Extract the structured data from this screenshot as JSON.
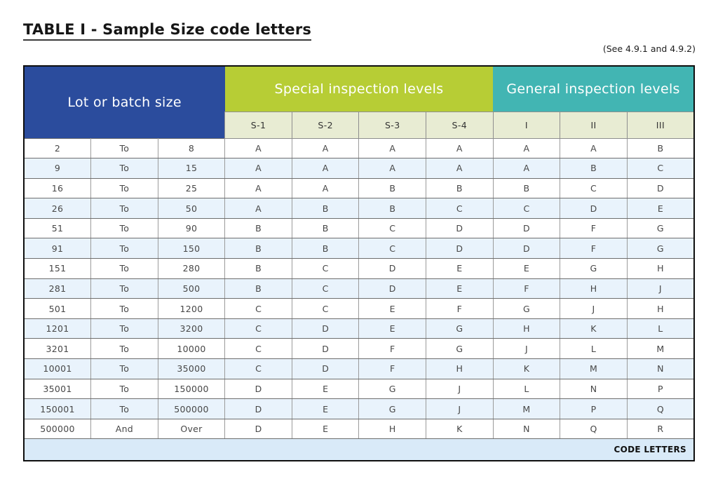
{
  "page": {
    "title": "TABLE I - Sample Size code letters",
    "reference_note": "(See 4.9.1 and 4.9.2)"
  },
  "table": {
    "header": {
      "lot_label": "Lot or batch size",
      "special_label": "Special inspection levels",
      "general_label": "General inspection levels",
      "special_columns": [
        "S-1",
        "S-2",
        "S-3",
        "S-4"
      ],
      "general_columns": [
        "I",
        "II",
        "III"
      ]
    },
    "rows": [
      {
        "from": "2",
        "connector": "To",
        "to": "8",
        "codes": [
          "A",
          "A",
          "A",
          "A",
          "A",
          "A",
          "B"
        ]
      },
      {
        "from": "9",
        "connector": "To",
        "to": "15",
        "codes": [
          "A",
          "A",
          "A",
          "A",
          "A",
          "B",
          "C"
        ]
      },
      {
        "from": "16",
        "connector": "To",
        "to": "25",
        "codes": [
          "A",
          "A",
          "B",
          "B",
          "B",
          "C",
          "D"
        ]
      },
      {
        "from": "26",
        "connector": "To",
        "to": "50",
        "codes": [
          "A",
          "B",
          "B",
          "C",
          "C",
          "D",
          "E"
        ]
      },
      {
        "from": "51",
        "connector": "To",
        "to": "90",
        "codes": [
          "B",
          "B",
          "C",
          "D",
          "D",
          "F",
          "G"
        ]
      },
      {
        "from": "91",
        "connector": "To",
        "to": "150",
        "codes": [
          "B",
          "B",
          "C",
          "D",
          "D",
          "F",
          "G"
        ]
      },
      {
        "from": "151",
        "connector": "To",
        "to": "280",
        "codes": [
          "B",
          "C",
          "D",
          "E",
          "E",
          "G",
          "H"
        ]
      },
      {
        "from": "281",
        "connector": "To",
        "to": "500",
        "codes": [
          "B",
          "C",
          "D",
          "E",
          "F",
          "H",
          "J"
        ]
      },
      {
        "from": "501",
        "connector": "To",
        "to": "1200",
        "codes": [
          "C",
          "C",
          "E",
          "F",
          "G",
          "J",
          "H"
        ]
      },
      {
        "from": "1201",
        "connector": "To",
        "to": "3200",
        "codes": [
          "C",
          "D",
          "E",
          "G",
          "H",
          "K",
          "L"
        ]
      },
      {
        "from": "3201",
        "connector": "To",
        "to": "10000",
        "codes": [
          "C",
          "D",
          "F",
          "G",
          "J",
          "L",
          "M"
        ]
      },
      {
        "from": "10001",
        "connector": "To",
        "to": "35000",
        "codes": [
          "C",
          "D",
          "F",
          "H",
          "K",
          "M",
          "N"
        ]
      },
      {
        "from": "35001",
        "connector": "To",
        "to": "150000",
        "codes": [
          "D",
          "E",
          "G",
          "J",
          "L",
          "N",
          "P"
        ]
      },
      {
        "from": "150001",
        "connector": "To",
        "to": "500000",
        "codes": [
          "D",
          "E",
          "G",
          "J",
          "M",
          "P",
          "Q"
        ]
      },
      {
        "from": "500000",
        "connector": "And",
        "to": "Over",
        "codes": [
          "D",
          "E",
          "H",
          "K",
          "N",
          "Q",
          "R"
        ]
      }
    ],
    "footer_label": "CODE LETTERS"
  },
  "colors": {
    "lot_header_bg": "#2b4c9d",
    "special_header_bg": "#b7cd35",
    "general_header_bg": "#42b5b3",
    "subheader_bg": "#e8ecd3",
    "alt_row_bg": "#e9f3fc",
    "footer_bg": "#d9eaf8",
    "outer_border": "#0e0e0e"
  }
}
